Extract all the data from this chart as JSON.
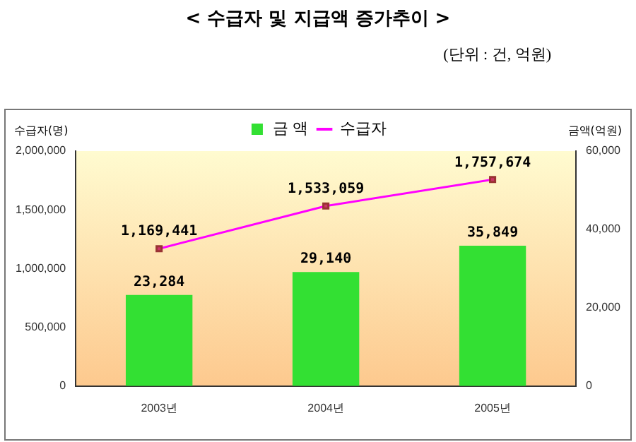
{
  "chart_data": {
    "type": "bar",
    "title": "< 수급자 및 지급액 증가추이 >",
    "subtitle": "(단위 : 건, 억원)",
    "ylabel": "수급자(명)",
    "y2label": "금액(억원)",
    "categories": [
      "2003년",
      "2004년",
      "2005년"
    ],
    "series": [
      {
        "name": "금 액",
        "axis": "y2",
        "color": "#33e033",
        "values": [
          23284,
          29140,
          35849
        ],
        "value_labels": [
          "23,284",
          "29,140",
          "35,849"
        ]
      },
      {
        "name": "수급자",
        "type": "line",
        "axis": "y",
        "color": "#ff00ff",
        "values": [
          1169441,
          1533059,
          1757674
        ],
        "value_labels": [
          "1,169,441",
          "1,533,059",
          "1,757,674"
        ]
      }
    ],
    "ylim": [
      0,
      2000000
    ],
    "yticks": [
      {
        "value": 0,
        "label": "0"
      },
      {
        "value": 500000,
        "label": "500,000"
      },
      {
        "value": 1000000,
        "label": "1,000,000"
      },
      {
        "value": 1500000,
        "label": "1,500,000"
      },
      {
        "value": 2000000,
        "label": "2,000,000"
      }
    ],
    "y2lim": [
      0,
      60000
    ],
    "y2ticks": [
      {
        "value": 0,
        "label": "0"
      },
      {
        "value": 20000,
        "label": "20,000"
      },
      {
        "value": 40000,
        "label": "40,000"
      },
      {
        "value": 60000,
        "label": "60,000"
      }
    ],
    "legend": "top",
    "marker": "square",
    "grid": false
  }
}
